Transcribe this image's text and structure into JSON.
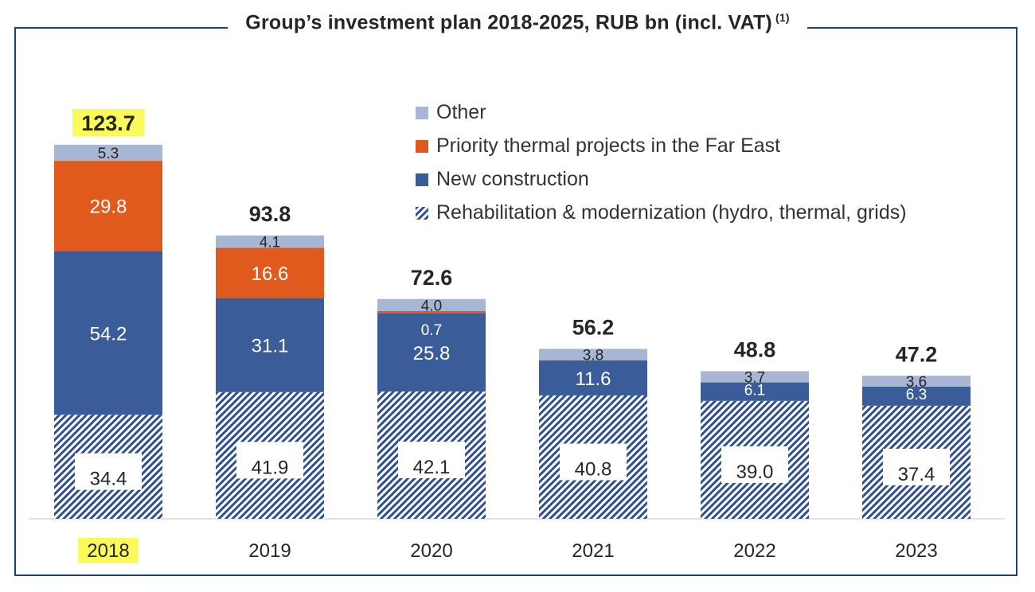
{
  "title": {
    "text": "Group’s investment plan 2018-2025, RUB bn (incl. VAT)",
    "footnote": "(1)"
  },
  "colors": {
    "other": "#a7b6d3",
    "priority": "#e05a1e",
    "new_construction": "#3a5c98",
    "rehab": "#2f4f91",
    "highlight": "#fafa5a",
    "frame": "#1f3f7a"
  },
  "legend": [
    {
      "key": "other",
      "label": "Other"
    },
    {
      "key": "priority",
      "label": "Priority thermal projects in the Far East"
    },
    {
      "key": "new_construction",
      "label": "New construction"
    },
    {
      "key": "rehab",
      "label": "Rehabilitation & modernization (hydro, thermal, grids)"
    }
  ],
  "chart_data": {
    "type": "bar",
    "stacked": true,
    "categories": [
      "2018",
      "2019",
      "2020",
      "2021",
      "2022",
      "2023"
    ],
    "highlighted_category": "2018",
    "series": [
      {
        "key": "rehab",
        "name": "Rehabilitation & modernization (hydro, thermal, grids)",
        "values": [
          34.4,
          41.9,
          42.1,
          40.8,
          39.0,
          37.4
        ],
        "labels": [
          "34.4",
          "41.9",
          "42.1",
          "40.8",
          "39.0",
          "37.4"
        ],
        "pattern": "diagonal-hatch"
      },
      {
        "key": "new_construction",
        "name": "New construction",
        "values": [
          54.2,
          31.1,
          25.8,
          11.6,
          6.1,
          6.3
        ],
        "labels": [
          "54.2",
          "31.1",
          "25.8",
          "11.6",
          "6.1",
          "6.3"
        ]
      },
      {
        "key": "priority",
        "name": "Priority thermal projects in the Far East",
        "values": [
          29.8,
          16.6,
          0.7,
          0,
          0,
          0
        ],
        "labels": [
          "29.8",
          "16.6",
          "0.7",
          "",
          "",
          ""
        ]
      },
      {
        "key": "other",
        "name": "Other",
        "values": [
          5.3,
          4.1,
          4.0,
          3.8,
          3.7,
          3.6
        ],
        "labels": [
          "5.3",
          "4.1",
          "4.0",
          "3.8",
          "3.7",
          "3.6"
        ]
      }
    ],
    "totals": [
      123.7,
      93.8,
      72.6,
      56.2,
      48.8,
      47.2
    ],
    "total_labels": [
      "123.7",
      "93.8",
      "72.6",
      "56.2",
      "48.8",
      "47.2"
    ],
    "ylim": [
      0,
      130
    ],
    "grid": false,
    "legend_position": "top-right"
  }
}
